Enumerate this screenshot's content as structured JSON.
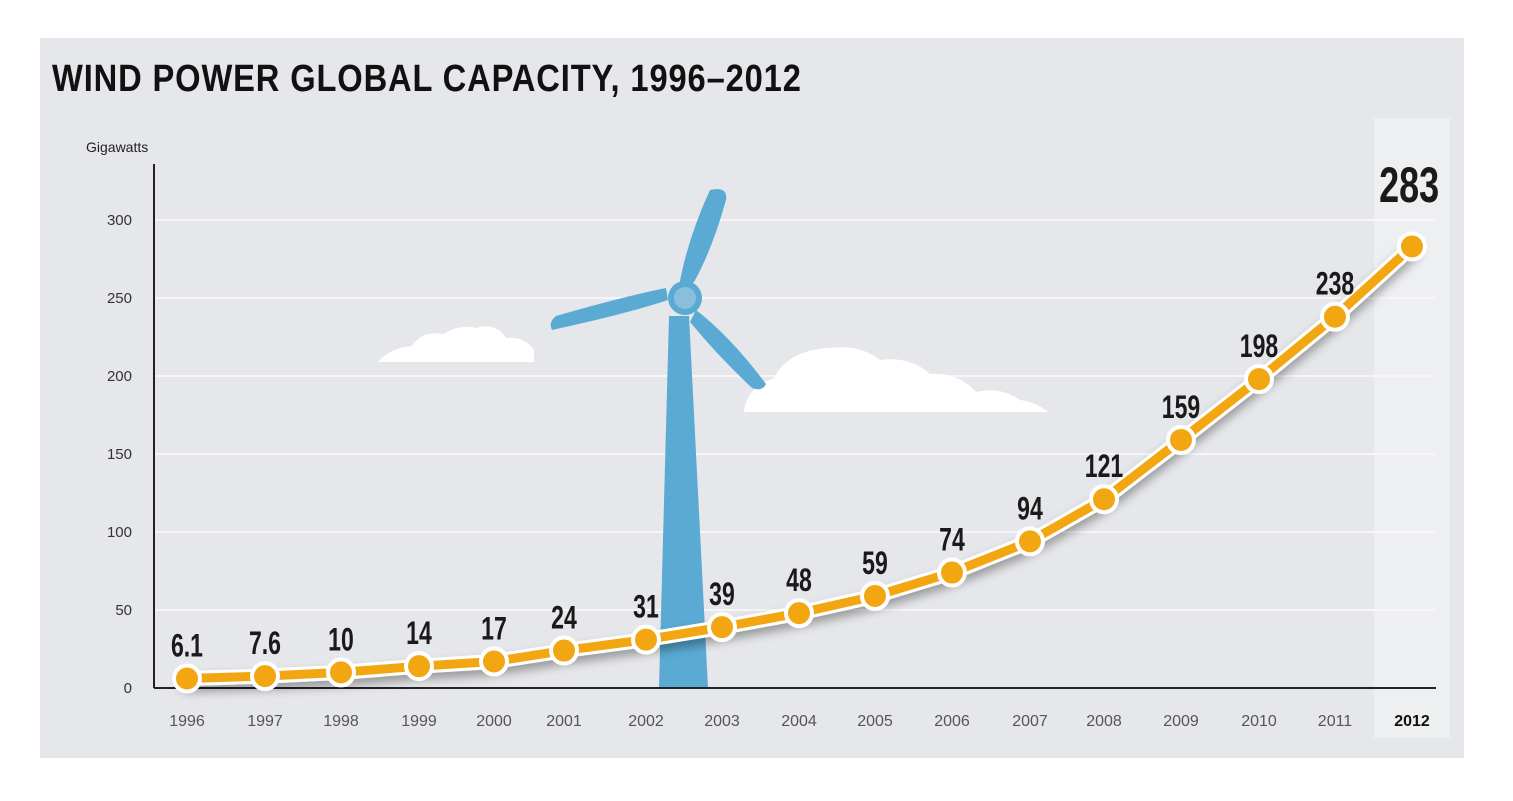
{
  "chart_data": {
    "type": "line",
    "title": "WIND POWER GLOBAL CAPACITY, 1996–2012",
    "ylabel": "Gigawatts",
    "xlabel": "",
    "ylim": [
      0,
      330
    ],
    "yticks": [
      0,
      50,
      100,
      150,
      200,
      250,
      300
    ],
    "categories": [
      "1996",
      "1997",
      "1998",
      "1999",
      "2000",
      "2001",
      "2002",
      "2003",
      "2004",
      "2005",
      "2006",
      "2007",
      "2008",
      "2009",
      "2010",
      "2011",
      "2012"
    ],
    "values": [
      6.1,
      7.6,
      10,
      14,
      17,
      24,
      31,
      39,
      48,
      59,
      74,
      94,
      121,
      159,
      198,
      238,
      283
    ],
    "labels": [
      "6.1",
      "7.6",
      "10",
      "14",
      "17",
      "24",
      "31",
      "39",
      "48",
      "59",
      "74",
      "94",
      "121",
      "159",
      "198",
      "238",
      "283"
    ],
    "highlight_category": "2012",
    "grid": true,
    "legend": "none",
    "colors": {
      "line": "#f2a712",
      "marker": "#f2a712",
      "marker_outline": "#ffffff",
      "turbine": "#5aaad3",
      "cloud": "#ffffff",
      "background": "#e6e7ea",
      "highlight_band": "#eeeff1"
    }
  }
}
